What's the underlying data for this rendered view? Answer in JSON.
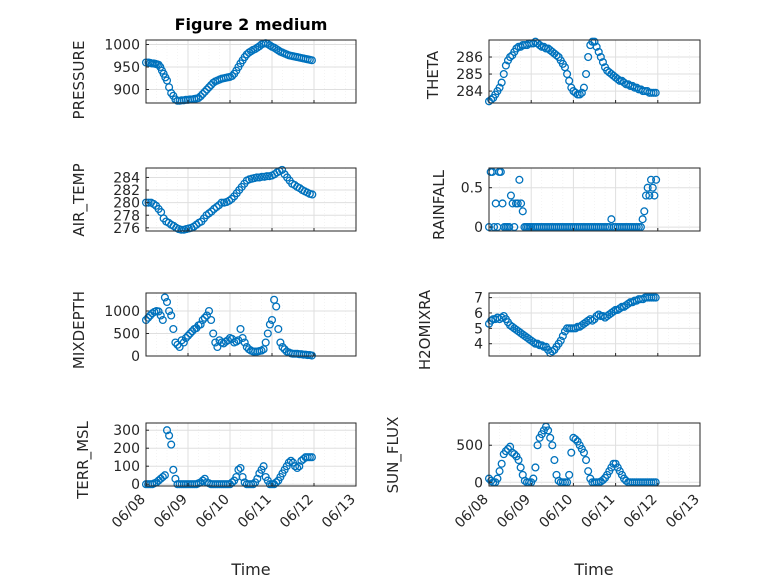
{
  "title": "Figure 2 medium",
  "marker_color": "#0072BD",
  "x_tick_labels": [
    "06/08",
    "06/09",
    "06/10",
    "06/11",
    "06/12",
    "06/13"
  ],
  "x_label": "Time",
  "chart_data": [
    {
      "type": "scatter",
      "ylabel": "PRESSURE",
      "ylim": [
        870,
        1010
      ],
      "yticks": [
        900,
        950,
        1000
      ],
      "grid": true,
      "x": [
        0.0,
        0.06,
        0.1,
        0.14,
        0.18,
        0.22,
        0.26,
        0.3,
        0.34,
        0.38,
        0.42,
        0.46,
        0.5,
        0.55,
        0.6,
        0.65,
        0.7,
        0.75,
        0.8,
        0.85,
        0.9,
        0.95,
        1.0,
        1.05,
        1.1,
        1.15,
        1.2,
        1.25,
        1.3,
        1.35,
        1.4,
        1.45,
        1.5,
        1.55,
        1.6,
        1.65,
        1.7,
        1.75,
        1.8,
        1.85,
        1.9,
        1.95,
        2.0,
        2.05,
        2.1,
        2.15,
        2.2,
        2.25,
        2.3,
        2.35,
        2.4,
        2.45,
        2.5,
        2.55,
        2.6,
        2.65,
        2.7,
        2.75,
        2.8,
        2.85,
        2.9,
        2.95,
        3.0,
        3.05,
        3.1,
        3.15,
        3.2,
        3.25,
        3.3,
        3.35,
        3.4,
        3.45,
        3.5,
        3.55,
        3.6,
        3.65,
        3.7,
        3.75,
        3.8,
        3.85,
        3.9,
        3.95
      ],
      "y": [
        960,
        960,
        959,
        958,
        958,
        957,
        956,
        955,
        950,
        942,
        935,
        927,
        920,
        905,
        892,
        886,
        878,
        875,
        875,
        876,
        876,
        877,
        877,
        878,
        878,
        879,
        880,
        881,
        885,
        890,
        895,
        900,
        905,
        910,
        915,
        918,
        920,
        922,
        924,
        925,
        926,
        927,
        928,
        930,
        935,
        942,
        950,
        958,
        965,
        972,
        978,
        982,
        985,
        988,
        990,
        993,
        996,
        1000,
        1002,
        1003,
        1001,
        998,
        995,
        993,
        990,
        987,
        984,
        982,
        980,
        978,
        976,
        975,
        974,
        973,
        972,
        971,
        970,
        969,
        968,
        967,
        966,
        965
      ]
    },
    {
      "type": "scatter",
      "ylabel": "THETA",
      "ylim": [
        283.3,
        287.0
      ],
      "yticks": [
        284,
        285,
        286
      ],
      "grid": true,
      "x": [
        0.0,
        0.05,
        0.1,
        0.15,
        0.2,
        0.25,
        0.3,
        0.35,
        0.4,
        0.45,
        0.5,
        0.55,
        0.6,
        0.65,
        0.7,
        0.75,
        0.8,
        0.85,
        0.9,
        0.95,
        1.0,
        1.05,
        1.1,
        1.15,
        1.2,
        1.25,
        1.3,
        1.35,
        1.4,
        1.45,
        1.5,
        1.55,
        1.6,
        1.65,
        1.7,
        1.75,
        1.8,
        1.85,
        1.9,
        1.95,
        2.0,
        2.05,
        2.1,
        2.15,
        2.2,
        2.25,
        2.3,
        2.35,
        2.4,
        2.45,
        2.5,
        2.55,
        2.6,
        2.65,
        2.7,
        2.75,
        2.8,
        2.85,
        2.9,
        2.95,
        3.0,
        3.05,
        3.1,
        3.15,
        3.2,
        3.25,
        3.3,
        3.35,
        3.4,
        3.45,
        3.5,
        3.55,
        3.6,
        3.65,
        3.7,
        3.75,
        3.8,
        3.85,
        3.9,
        3.95
      ],
      "y": [
        283.4,
        283.5,
        283.6,
        283.8,
        284.0,
        284.2,
        284.5,
        285.0,
        285.5,
        285.8,
        286.0,
        286.1,
        286.3,
        286.5,
        286.6,
        286.6,
        286.7,
        286.7,
        286.7,
        286.8,
        286.8,
        286.8,
        286.9,
        286.8,
        286.7,
        286.6,
        286.6,
        286.5,
        286.5,
        286.4,
        286.3,
        286.2,
        286.1,
        286.0,
        285.8,
        285.6,
        285.4,
        285.0,
        284.6,
        284.2,
        284.0,
        283.9,
        283.8,
        283.8,
        283.9,
        284.2,
        285.0,
        286.0,
        286.7,
        286.9,
        286.9,
        286.6,
        286.3,
        286.0,
        285.7,
        285.4,
        285.2,
        285.1,
        285.0,
        284.9,
        284.8,
        284.7,
        284.6,
        284.6,
        284.5,
        284.4,
        284.4,
        284.3,
        284.3,
        284.2,
        284.2,
        284.1,
        284.1,
        284.0,
        284.0,
        284.0,
        283.9,
        283.9,
        283.9,
        283.9
      ]
    },
    {
      "type": "scatter",
      "ylabel": "AIR_TEMP",
      "ylim": [
        275.5,
        285.5
      ],
      "yticks": [
        276,
        278,
        280,
        282,
        284
      ],
      "grid": true,
      "x": [
        0.0,
        0.06,
        0.12,
        0.18,
        0.24,
        0.3,
        0.36,
        0.42,
        0.48,
        0.54,
        0.6,
        0.66,
        0.72,
        0.78,
        0.84,
        0.9,
        0.96,
        1.02,
        1.08,
        1.14,
        1.2,
        1.26,
        1.32,
        1.38,
        1.44,
        1.5,
        1.56,
        1.62,
        1.68,
        1.74,
        1.8,
        1.86,
        1.92,
        1.98,
        2.04,
        2.1,
        2.16,
        2.22,
        2.28,
        2.34,
        2.4,
        2.46,
        2.52,
        2.58,
        2.64,
        2.7,
        2.76,
        2.82,
        2.88,
        2.94,
        3.0,
        3.06,
        3.12,
        3.18,
        3.24,
        3.3,
        3.36,
        3.42,
        3.48,
        3.54,
        3.6,
        3.66,
        3.72,
        3.78,
        3.84,
        3.9,
        3.96
      ],
      "y": [
        280.0,
        280.0,
        280.0,
        279.8,
        279.5,
        279.0,
        278.5,
        277.5,
        277.0,
        276.8,
        276.5,
        276.3,
        276.0,
        275.8,
        275.7,
        275.7,
        275.8,
        275.9,
        276.0,
        276.2,
        276.5,
        276.8,
        277.0,
        277.5,
        278.0,
        278.3,
        278.6,
        279.0,
        279.3,
        279.6,
        280.0,
        280.0,
        280.1,
        280.3,
        280.6,
        281.0,
        281.5,
        282.0,
        282.5,
        283.0,
        283.5,
        283.7,
        283.8,
        283.9,
        284.0,
        284.0,
        284.1,
        284.1,
        284.2,
        284.2,
        284.3,
        284.5,
        284.8,
        285.0,
        285.2,
        284.5,
        284.0,
        283.5,
        283.0,
        282.8,
        282.5,
        282.3,
        282.0,
        281.8,
        281.6,
        281.4,
        281.3
      ]
    },
    {
      "type": "scatter",
      "ylabel": "RAINFALL",
      "ylim": [
        -0.05,
        0.75
      ],
      "yticks": [
        0,
        0.5
      ],
      "grid": true,
      "x": [
        0.0,
        0.04,
        0.08,
        0.12,
        0.16,
        0.2,
        0.24,
        0.28,
        0.32,
        0.36,
        0.4,
        0.44,
        0.48,
        0.52,
        0.56,
        0.6,
        0.64,
        0.68,
        0.72,
        0.76,
        0.8,
        0.84,
        0.88,
        0.92,
        0.96,
        1.0,
        1.05,
        1.1,
        1.15,
        1.2,
        1.25,
        1.3,
        1.35,
        1.4,
        1.45,
        1.5,
        1.55,
        1.6,
        1.65,
        1.7,
        1.75,
        1.8,
        1.85,
        1.9,
        1.95,
        2.0,
        2.05,
        2.1,
        2.15,
        2.2,
        2.25,
        2.3,
        2.35,
        2.4,
        2.45,
        2.5,
        2.55,
        2.6,
        2.65,
        2.7,
        2.75,
        2.8,
        2.85,
        2.9,
        2.95,
        3.0,
        3.05,
        3.1,
        3.15,
        3.2,
        3.25,
        3.3,
        3.35,
        3.4,
        3.45,
        3.5,
        3.55,
        3.6,
        3.64,
        3.68,
        3.72,
        3.76,
        3.8,
        3.84,
        3.88,
        3.92,
        3.96
      ],
      "y": [
        0,
        0.7,
        0.7,
        0,
        0.3,
        0,
        0.7,
        0.7,
        0.3,
        0,
        0,
        0,
        0,
        0.4,
        0.3,
        0,
        0.3,
        0.3,
        0.6,
        0.3,
        0.2,
        0,
        0,
        0,
        0,
        0,
        0,
        0,
        0,
        0,
        0,
        0,
        0,
        0,
        0,
        0,
        0,
        0,
        0,
        0,
        0,
        0,
        0,
        0,
        0,
        0,
        0,
        0,
        0,
        0,
        0,
        0,
        0,
        0,
        0,
        0,
        0,
        0,
        0,
        0,
        0,
        0,
        0,
        0.1,
        0,
        0,
        0,
        0,
        0,
        0,
        0,
        0,
        0,
        0,
        0,
        0,
        0,
        0,
        0.1,
        0.2,
        0.4,
        0.5,
        0.4,
        0.6,
        0.5,
        0.4,
        0.6
      ]
    },
    {
      "type": "scatter",
      "ylabel": "MIXDEPTH",
      "ylim": [
        0,
        1400
      ],
      "yticks": [
        0,
        500,
        1000
      ],
      "grid": true,
      "x": [
        0.0,
        0.05,
        0.1,
        0.15,
        0.2,
        0.25,
        0.3,
        0.35,
        0.4,
        0.45,
        0.5,
        0.55,
        0.6,
        0.65,
        0.7,
        0.75,
        0.8,
        0.85,
        0.9,
        0.95,
        1.0,
        1.05,
        1.1,
        1.15,
        1.2,
        1.25,
        1.3,
        1.35,
        1.4,
        1.45,
        1.5,
        1.55,
        1.6,
        1.65,
        1.7,
        1.75,
        1.8,
        1.85,
        1.9,
        1.95,
        2.0,
        2.05,
        2.1,
        2.15,
        2.2,
        2.25,
        2.3,
        2.35,
        2.4,
        2.45,
        2.5,
        2.55,
        2.6,
        2.65,
        2.7,
        2.75,
        2.8,
        2.85,
        2.9,
        2.95,
        3.0,
        3.05,
        3.1,
        3.15,
        3.2,
        3.25,
        3.3,
        3.35,
        3.4,
        3.45,
        3.5,
        3.55,
        3.6,
        3.65,
        3.7,
        3.75,
        3.8,
        3.85,
        3.9,
        3.95
      ],
      "y": [
        800,
        850,
        900,
        950,
        980,
        1000,
        990,
        900,
        800,
        1300,
        1200,
        1000,
        900,
        600,
        300,
        250,
        200,
        350,
        300,
        400,
        450,
        500,
        550,
        600,
        620,
        680,
        700,
        800,
        850,
        900,
        1000,
        800,
        500,
        300,
        200,
        350,
        300,
        280,
        320,
        350,
        400,
        380,
        300,
        320,
        350,
        600,
        400,
        300,
        200,
        150,
        120,
        100,
        100,
        100,
        110,
        120,
        150,
        300,
        500,
        700,
        800,
        1250,
        1100,
        600,
        300,
        200,
        150,
        100,
        80,
        60,
        50,
        50,
        50,
        40,
        40,
        30,
        30,
        20,
        20,
        10
      ]
    },
    {
      "type": "scatter",
      "ylabel": "H2OMIXRA",
      "ylim": [
        3.2,
        7.3
      ],
      "yticks": [
        4,
        5,
        6,
        7
      ],
      "grid": true,
      "x": [
        0.0,
        0.05,
        0.1,
        0.15,
        0.2,
        0.25,
        0.3,
        0.35,
        0.4,
        0.45,
        0.5,
        0.55,
        0.6,
        0.65,
        0.7,
        0.75,
        0.8,
        0.85,
        0.9,
        0.95,
        1.0,
        1.05,
        1.1,
        1.15,
        1.2,
        1.25,
        1.3,
        1.35,
        1.4,
        1.45,
        1.5,
        1.55,
        1.6,
        1.65,
        1.7,
        1.75,
        1.8,
        1.85,
        1.9,
        1.95,
        2.0,
        2.05,
        2.1,
        2.15,
        2.2,
        2.25,
        2.3,
        2.35,
        2.4,
        2.45,
        2.5,
        2.55,
        2.6,
        2.65,
        2.7,
        2.75,
        2.8,
        2.85,
        2.9,
        2.95,
        3.0,
        3.05,
        3.1,
        3.15,
        3.2,
        3.25,
        3.3,
        3.35,
        3.4,
        3.45,
        3.5,
        3.55,
        3.6,
        3.65,
        3.7,
        3.75,
        3.8,
        3.85,
        3.9,
        3.95
      ],
      "y": [
        5.3,
        5.5,
        5.6,
        5.6,
        5.7,
        5.6,
        5.7,
        5.8,
        5.6,
        5.4,
        5.2,
        5.1,
        5.0,
        4.9,
        4.8,
        4.7,
        4.6,
        4.5,
        4.4,
        4.3,
        4.2,
        4.1,
        4.0,
        4.0,
        3.9,
        3.9,
        3.8,
        3.8,
        3.6,
        3.4,
        3.5,
        3.6,
        3.8,
        4.0,
        4.2,
        4.5,
        4.8,
        5.0,
        5.0,
        5.0,
        5.0,
        5.0,
        5.1,
        5.1,
        5.2,
        5.3,
        5.4,
        5.5,
        5.6,
        5.5,
        5.6,
        5.8,
        5.9,
        5.8,
        5.8,
        5.7,
        5.8,
        5.9,
        6.0,
        6.1,
        6.2,
        6.2,
        6.3,
        6.4,
        6.4,
        6.5,
        6.6,
        6.7,
        6.7,
        6.8,
        6.8,
        6.9,
        6.9,
        6.9,
        7.0,
        7.0,
        7.0,
        7.0,
        7.0,
        7.0
      ]
    },
    {
      "type": "scatter",
      "ylabel": "TERR_MSL",
      "ylim": [
        -10,
        340
      ],
      "yticks": [
        0,
        100,
        200,
        300
      ],
      "grid": true,
      "x": [
        0.0,
        0.05,
        0.1,
        0.15,
        0.2,
        0.25,
        0.3,
        0.35,
        0.4,
        0.45,
        0.5,
        0.55,
        0.6,
        0.65,
        0.7,
        0.75,
        0.8,
        0.85,
        0.9,
        0.95,
        1.0,
        1.05,
        1.1,
        1.15,
        1.2,
        1.25,
        1.3,
        1.35,
        1.4,
        1.45,
        1.5,
        1.55,
        1.6,
        1.65,
        1.7,
        1.75,
        1.8,
        1.85,
        1.9,
        1.95,
        2.0,
        2.05,
        2.1,
        2.15,
        2.2,
        2.25,
        2.3,
        2.35,
        2.4,
        2.45,
        2.5,
        2.55,
        2.6,
        2.65,
        2.7,
        2.75,
        2.8,
        2.85,
        2.9,
        2.95,
        3.0,
        3.05,
        3.1,
        3.15,
        3.2,
        3.25,
        3.3,
        3.35,
        3.4,
        3.45,
        3.5,
        3.55,
        3.6,
        3.65,
        3.7,
        3.75,
        3.8,
        3.85,
        3.9,
        3.95
      ],
      "y": [
        0,
        0,
        0,
        0,
        5,
        10,
        20,
        30,
        40,
        50,
        300,
        270,
        220,
        80,
        30,
        0,
        0,
        0,
        0,
        0,
        0,
        0,
        0,
        0,
        0,
        5,
        10,
        20,
        30,
        10,
        5,
        0,
        0,
        0,
        0,
        0,
        0,
        0,
        0,
        0,
        0,
        10,
        20,
        40,
        80,
        90,
        40,
        10,
        0,
        0,
        0,
        0,
        10,
        30,
        60,
        80,
        100,
        40,
        20,
        0,
        0,
        0,
        10,
        20,
        40,
        60,
        80,
        100,
        120,
        130,
        120,
        100,
        90,
        100,
        130,
        140,
        150,
        150,
        150,
        150
      ]
    },
    {
      "type": "scatter",
      "ylabel": "SUN_FLUX",
      "ylim": [
        -50,
        800
      ],
      "yticks": [
        0,
        500
      ],
      "grid": true,
      "x": [
        0.0,
        0.05,
        0.1,
        0.15,
        0.2,
        0.25,
        0.3,
        0.35,
        0.4,
        0.45,
        0.5,
        0.55,
        0.6,
        0.65,
        0.7,
        0.75,
        0.8,
        0.85,
        0.9,
        0.95,
        1.0,
        1.05,
        1.1,
        1.15,
        1.2,
        1.25,
        1.3,
        1.35,
        1.4,
        1.45,
        1.5,
        1.55,
        1.6,
        1.65,
        1.7,
        1.75,
        1.8,
        1.85,
        1.9,
        1.95,
        2.0,
        2.05,
        2.1,
        2.15,
        2.2,
        2.25,
        2.3,
        2.35,
        2.4,
        2.45,
        2.5,
        2.55,
        2.6,
        2.65,
        2.7,
        2.75,
        2.8,
        2.85,
        2.9,
        2.95,
        3.0,
        3.05,
        3.1,
        3.15,
        3.2,
        3.25,
        3.3,
        3.35,
        3.4,
        3.45,
        3.5,
        3.55,
        3.6,
        3.65,
        3.7,
        3.75,
        3.8,
        3.85,
        3.9,
        3.95
      ],
      "y": [
        50,
        20,
        0,
        0,
        50,
        150,
        250,
        380,
        420,
        450,
        480,
        400,
        380,
        350,
        300,
        200,
        100,
        20,
        0,
        0,
        0,
        50,
        200,
        500,
        600,
        650,
        700,
        750,
        700,
        600,
        500,
        300,
        100,
        20,
        0,
        0,
        0,
        0,
        100,
        400,
        600,
        580,
        550,
        500,
        450,
        400,
        300,
        150,
        50,
        0,
        0,
        0,
        0,
        10,
        30,
        60,
        100,
        150,
        200,
        250,
        250,
        200,
        150,
        100,
        50,
        20,
        0,
        0,
        0,
        0,
        0,
        0,
        0,
        0,
        0,
        0,
        0,
        0,
        0,
        0
      ]
    }
  ]
}
